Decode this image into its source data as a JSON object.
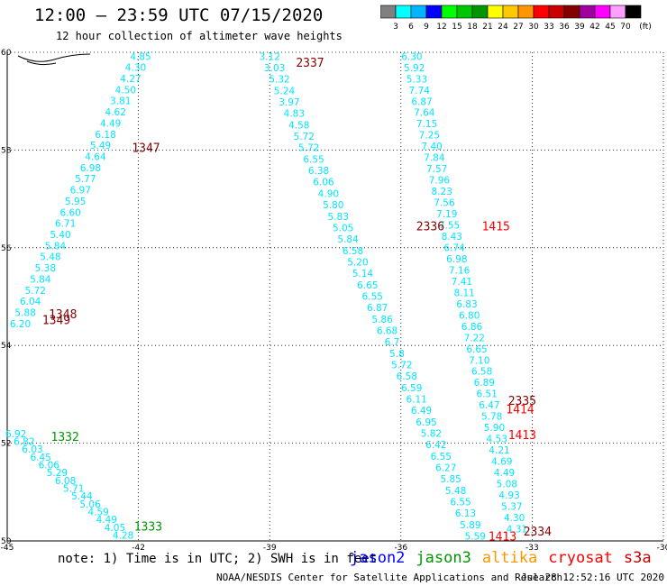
{
  "header": {
    "title": "12:00 — 23:59 UTC 07/15/2020",
    "subtitle": "12 hour collection of altimeter wave heights"
  },
  "colorbar": {
    "unit_label": "(ft)",
    "ticks": [
      "3",
      "6",
      "9",
      "12",
      "15",
      "18",
      "21",
      "24",
      "27",
      "30",
      "33",
      "36",
      "39",
      "42",
      "45",
      "70"
    ],
    "colors": [
      "#808080",
      "#00ffff",
      "#00b4ff",
      "#0000ff",
      "#00ff00",
      "#00c800",
      "#009600",
      "#ffff00",
      "#ffc800",
      "#ff9600",
      "#ff0000",
      "#c80000",
      "#820000",
      "#a000a0",
      "#ff00ff",
      "#ffa0ff",
      "#000000"
    ]
  },
  "footer": {
    "note": "note: 1) Time is in UTC; 2) SWH is in feet",
    "credit": "NOAA/NESDIS Center for Satellite Applications and Research",
    "timestamp": "Jul 28 12:52:16 UTC 2020",
    "legend": [
      {
        "name": "jason2",
        "color": "#0000ff"
      },
      {
        "name": "jason3",
        "color": "#009600"
      },
      {
        "name": "altika",
        "color": "#ff9600"
      },
      {
        "name": "cryosat",
        "color": "#ff0000"
      },
      {
        "name": "s3a",
        "color": "#c80000"
      }
    ]
  },
  "chart_data": {
    "type": "scatter",
    "title": "12:00 — 23:59 UTC 07/15/2020",
    "xlim": [
      -45,
      -30
    ],
    "ylim": [
      50,
      60
    ],
    "x_ticks": [
      "-45",
      "-42",
      "-39",
      "-36",
      "-33",
      "-30"
    ],
    "y_ticks": [
      "50",
      "52",
      "54",
      "56",
      "58",
      "60"
    ],
    "grid": true,
    "value_color": "#00e5ff",
    "tracks": [
      {
        "id": "track-a",
        "values": [
          "4.85",
          "4.30",
          "4.27",
          "4.50",
          "3.81",
          "4.62",
          "4.49",
          "6.18",
          "5.49",
          "4.64",
          "6.98",
          "5.77",
          "6.97",
          "5.95",
          "6.60",
          "6.71",
          "5.40",
          "5.84",
          "5.48",
          "5.38",
          "5.84",
          "5.72",
          "6.04",
          "5.88",
          "6.20"
        ],
        "start": [
          -41.95,
          59.92
        ],
        "end": [
          -44.7,
          54.45
        ]
      },
      {
        "id": "track-b",
        "values": [
          "3.12",
          "3.03",
          "5.32",
          "5.24",
          "3.97",
          "4.83",
          "4.58",
          "5.72",
          "5.72",
          "6.55",
          "6.38",
          "6.06",
          "4.90",
          "5.80",
          "5.83",
          "5.05",
          "5.84",
          "6.58",
          "5.20",
          "5.14",
          "6.65",
          "6.55",
          "6.87",
          "5.86",
          "6.68",
          "6.7",
          "5.8",
          "5.72",
          "6.58",
          "6.59",
          "6.11",
          "6.49",
          "6.95",
          "5.82",
          "6.42",
          "6.55",
          "6.27",
          "5.85",
          "5.48",
          "6.55",
          "6.13",
          "5.89",
          "5.59"
        ],
        "start": [
          -39.0,
          59.92
        ],
        "end": [
          -34.3,
          50.1
        ]
      },
      {
        "id": "track-c",
        "values": [
          "6.30",
          "5.92",
          "5.33",
          "7.74",
          "6.87",
          "7.64",
          "7.15",
          "7.25",
          "7.40",
          "7.84",
          "7.57",
          "7.96",
          "8.23",
          "7.56",
          "7.19",
          "7.55",
          "8.43",
          "6.74",
          "6.98",
          "7.16",
          "7.41",
          "8.11",
          "6.83",
          "6.80",
          "6.86",
          "7.22",
          "6.65",
          "7.10",
          "6.58",
          "6.89",
          "6.51",
          "6.47",
          "5.78",
          "5.90",
          "4.53",
          "4.21",
          "4.69",
          "4.49",
          "5.08",
          "4.93",
          "5.37",
          "4.30",
          "4.31"
        ],
        "start": [
          -35.75,
          59.92
        ],
        "end": [
          -33.35,
          50.25
        ]
      },
      {
        "id": "track-d",
        "values": [
          "6.92",
          "6.82",
          "6.03",
          "6.45",
          "6.06",
          "5.29",
          "6.08",
          "5.71",
          "5.44",
          "5.06",
          "4.59",
          "4.49",
          "4.05",
          "4.28"
        ],
        "start": [
          -44.8,
          52.2
        ],
        "end": [
          -42.35,
          50.12
        ]
      }
    ],
    "time_labels": [
      {
        "text": "2337",
        "x": -38.4,
        "y": 59.8,
        "color": "#820000"
      },
      {
        "text": "1347",
        "x": -42.15,
        "y": 58.05,
        "color": "#820000"
      },
      {
        "text": "2336",
        "x": -35.65,
        "y": 56.45,
        "color": "#820000"
      },
      {
        "text": "1415",
        "x": -34.15,
        "y": 56.45,
        "color": "#ff0000"
      },
      {
        "text": "1348",
        "x": -44.05,
        "y": 54.65,
        "color": "#820000"
      },
      {
        "text": "1349",
        "x": -44.2,
        "y": 54.53,
        "color": "#820000"
      },
      {
        "text": "2335",
        "x": -33.55,
        "y": 52.88,
        "color": "#820000"
      },
      {
        "text": "1414",
        "x": -33.6,
        "y": 52.7,
        "color": "#ff0000"
      },
      {
        "text": "1413",
        "x": -33.55,
        "y": 52.18,
        "color": "#ff0000"
      },
      {
        "text": "1332",
        "x": -44.0,
        "y": 52.14,
        "color": "#009600"
      },
      {
        "text": "1333",
        "x": -42.1,
        "y": 50.3,
        "color": "#009600"
      },
      {
        "text": "1413",
        "x": -34.0,
        "y": 50.1,
        "color": "#ff0000"
      },
      {
        "text": "2334",
        "x": -33.2,
        "y": 50.2,
        "color": "#820000"
      }
    ]
  }
}
